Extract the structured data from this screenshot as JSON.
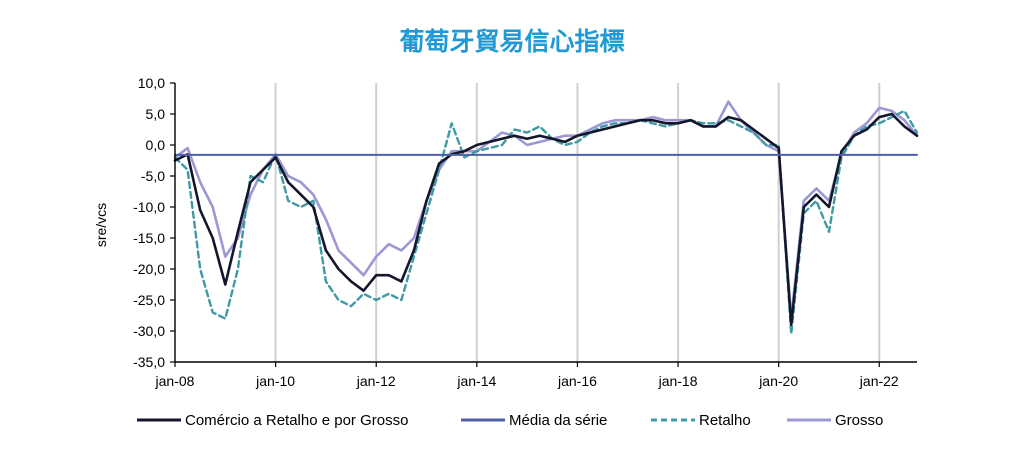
{
  "chart_data": {
    "type": "line",
    "title": "葡萄牙貿易信心指標",
    "xlabel": "",
    "ylabel": "sre/vcs",
    "ylim": [
      -35,
      10
    ],
    "yticks": [
      "10,0",
      "5,0",
      "0,0",
      "-5,0",
      "-10,0",
      "-15,0",
      "-20,0",
      "-25,0",
      "-30,0",
      "-35,0"
    ],
    "xticks": [
      "jan-08",
      "jan-10",
      "jan-12",
      "jan-14",
      "jan-16",
      "jan-18",
      "jan-20",
      "jan-22"
    ],
    "x_tick_positions": [
      2008,
      2010,
      2012,
      2014,
      2016,
      2018,
      2020,
      2022
    ],
    "xlim": [
      2008,
      2022.75
    ],
    "grid": "vertical",
    "legend_position": "bottom",
    "x": [
      2008.0,
      2008.25,
      2008.5,
      2008.75,
      2009.0,
      2009.25,
      2009.5,
      2009.75,
      2010.0,
      2010.25,
      2010.5,
      2010.75,
      2011.0,
      2011.25,
      2011.5,
      2011.75,
      2012.0,
      2012.25,
      2012.5,
      2012.75,
      2013.0,
      2013.25,
      2013.5,
      2013.75,
      2014.0,
      2014.25,
      2014.5,
      2014.75,
      2015.0,
      2015.25,
      2015.5,
      2015.75,
      2016.0,
      2016.25,
      2016.5,
      2016.75,
      2017.0,
      2017.25,
      2017.5,
      2017.75,
      2018.0,
      2018.25,
      2018.5,
      2018.75,
      2019.0,
      2019.25,
      2019.5,
      2019.75,
      2020.0,
      2020.25,
      2020.5,
      2020.75,
      2021.0,
      2021.25,
      2021.5,
      2021.75,
      2022.0,
      2022.25,
      2022.5,
      2022.75
    ],
    "series": [
      {
        "name": "Comércio a Retalho e por Grosso",
        "color": "#14162b",
        "dash": "none",
        "width": 2.6,
        "values": [
          -2.5,
          -1.5,
          -10.5,
          -15,
          -22.5,
          -14,
          -6,
          -4,
          -2,
          -6,
          -8,
          -10,
          -17,
          -20,
          -22,
          -23.5,
          -21,
          -21,
          -22,
          -17,
          -9,
          -3,
          -1.5,
          -1,
          0,
          0.5,
          1,
          1.5,
          1,
          1.5,
          1,
          0.5,
          1.5,
          2,
          2.5,
          3,
          3.5,
          4,
          4,
          3.5,
          3.5,
          4,
          3,
          3,
          4.5,
          4,
          2.5,
          1,
          -0.5,
          -29,
          -10,
          -8,
          -10,
          -1,
          1.5,
          2.5,
          4.5,
          5,
          3,
          1.5
        ]
      },
      {
        "name": "Média da série",
        "color": "#4f5fa8",
        "dash": "none",
        "width": 2,
        "values": [
          -1.6,
          -1.6,
          -1.6,
          -1.6,
          -1.6,
          -1.6,
          -1.6,
          -1.6,
          -1.6,
          -1.6,
          -1.6,
          -1.6,
          -1.6,
          -1.6,
          -1.6,
          -1.6,
          -1.6,
          -1.6,
          -1.6,
          -1.6,
          -1.6,
          -1.6,
          -1.6,
          -1.6,
          -1.6,
          -1.6,
          -1.6,
          -1.6,
          -1.6,
          -1.6,
          -1.6,
          -1.6,
          -1.6,
          -1.6,
          -1.6,
          -1.6,
          -1.6,
          -1.6,
          -1.6,
          -1.6,
          -1.6,
          -1.6,
          -1.6,
          -1.6,
          -1.6,
          -1.6,
          -1.6,
          -1.6,
          -1.6,
          -1.6,
          -1.6,
          -1.6,
          -1.6,
          -1.6,
          -1.6,
          -1.6,
          -1.6,
          -1.6,
          -1.6,
          -1.6
        ]
      },
      {
        "name": "Retalho",
        "color": "#3f9aa6",
        "dash": "6,4",
        "width": 2.4,
        "values": [
          -2,
          -4,
          -20,
          -27,
          -28,
          -20,
          -5,
          -6,
          -1.5,
          -9,
          -10,
          -9,
          -22,
          -25,
          -26,
          -24,
          -25,
          -24,
          -25,
          -18,
          -11,
          -4,
          3.5,
          -2,
          -1,
          -0.5,
          0,
          2.5,
          2,
          3,
          1,
          0,
          0.5,
          2,
          3,
          3.5,
          3.5,
          4,
          3.5,
          3,
          3.5,
          4,
          3.5,
          3.5,
          4,
          3,
          2,
          0,
          0,
          -30.5,
          -11,
          -9,
          -14,
          -2,
          1.5,
          3,
          3.5,
          4.5,
          5.5,
          2
        ]
      },
      {
        "name": "Grosso",
        "color": "#9b98d4",
        "dash": "none",
        "width": 2.6,
        "values": [
          -2,
          -0.5,
          -6,
          -10,
          -18,
          -15,
          -8,
          -4,
          -1.5,
          -5,
          -6,
          -8,
          -12,
          -17,
          -19,
          -21,
          -18,
          -16,
          -17,
          -15,
          -9,
          -4,
          -1,
          -1,
          -1,
          0.5,
          2,
          1.5,
          0,
          0.5,
          1,
          1.5,
          1.5,
          2.5,
          3.5,
          4,
          4,
          4,
          4.5,
          4,
          4,
          4,
          3,
          3,
          7,
          4,
          2,
          0,
          -1,
          -28,
          -9,
          -7,
          -9,
          -1.5,
          2,
          3.5,
          6,
          5.5,
          4,
          1.5
        ]
      }
    ]
  }
}
